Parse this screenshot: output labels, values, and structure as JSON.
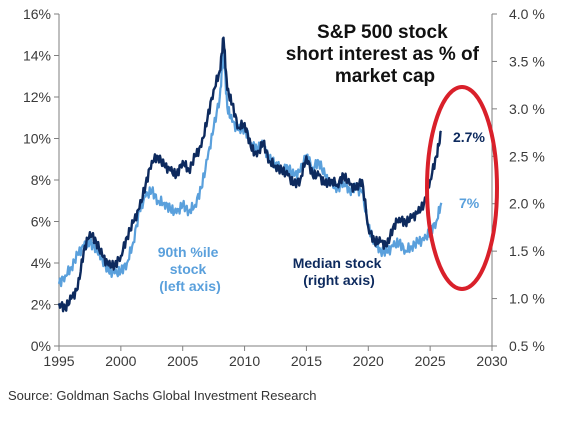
{
  "chart_data": {
    "type": "line",
    "title_lines": [
      "S&P 500 stock",
      "short interest as % of",
      "market cap"
    ],
    "x_ticks": [
      "1995",
      "2000",
      "2005",
      "2010",
      "2015",
      "2020",
      "2025",
      "2030"
    ],
    "left_ticks": [
      "0%",
      "2%",
      "4%",
      "6%",
      "8%",
      "10%",
      "12%",
      "14%",
      "16%"
    ],
    "right_ticks": [
      "0.5 %",
      "1.0 %",
      "1.5 %",
      "2.0 %",
      "2.5 %",
      "3.0 %",
      "3.5 %",
      "4.0 %"
    ],
    "xlim": [
      1995,
      2030
    ],
    "ylim_left": [
      0,
      16
    ],
    "ylim_right": [
      0.5,
      4.0
    ],
    "grid": false,
    "series": [
      {
        "name": "90th %ile stock (left axis)",
        "label_lines": [
          "90th %ile",
          "stock",
          "(left axis)"
        ],
        "axis": "left",
        "color": "#5aa0dc",
        "end_label": "7%",
        "x": [
          1995,
          1995.5,
          1996,
          1996.5,
          1997,
          1997.5,
          1998,
          1998.5,
          1999,
          1999.5,
          2000,
          2000.5,
          2001,
          2001.5,
          2002,
          2002.5,
          2003,
          2003.5,
          2004,
          2004.5,
          2005,
          2005.5,
          2006,
          2006.5,
          2007,
          2007.5,
          2008,
          2008.3,
          2008.6,
          2009,
          2009.5,
          2010,
          2010.5,
          2011,
          2011.5,
          2012,
          2012.5,
          2013,
          2013.5,
          2014,
          2014.5,
          2015,
          2015.5,
          2016,
          2016.5,
          2017,
          2017.5,
          2018,
          2018.5,
          2019,
          2019.5,
          2020,
          2020.5,
          2021,
          2021.5,
          2022,
          2022.5,
          2023,
          2023.5,
          2024,
          2024.5,
          2025,
          2025.5,
          2025.9
        ],
        "values": [
          3.0,
          3.4,
          3.8,
          4.4,
          4.8,
          5.0,
          4.7,
          4.2,
          3.6,
          3.5,
          3.6,
          4.0,
          5.0,
          6.5,
          7.2,
          7.5,
          7.0,
          6.9,
          6.6,
          6.4,
          6.8,
          6.5,
          6.8,
          7.6,
          9.0,
          10.5,
          12.0,
          14.2,
          11.5,
          10.8,
          10.4,
          10.5,
          9.8,
          9.5,
          9.7,
          9.0,
          8.8,
          8.5,
          8.6,
          8.2,
          8.4,
          9.2,
          8.6,
          8.9,
          8.2,
          7.8,
          7.6,
          7.9,
          7.5,
          7.6,
          7.4,
          5.8,
          5.0,
          4.6,
          4.5,
          4.8,
          5.0,
          4.6,
          4.8,
          5.0,
          5.1,
          5.5,
          6.0,
          6.9
        ]
      },
      {
        "name": "Median stock (right axis)",
        "label_lines": [
          "Median stock",
          "(right axis)"
        ],
        "axis": "right",
        "color": "#0d2a5e",
        "end_label": "2.7%",
        "x": [
          1995,
          1995.5,
          1996,
          1996.5,
          1997,
          1997.5,
          1998,
          1998.5,
          1999,
          1999.5,
          2000,
          2000.5,
          2001,
          2001.5,
          2002,
          2002.5,
          2003,
          2003.5,
          2004,
          2004.5,
          2005,
          2005.5,
          2006,
          2006.5,
          2007,
          2007.5,
          2008,
          2008.3,
          2008.6,
          2009,
          2009.5,
          2010,
          2010.5,
          2011,
          2011.5,
          2012,
          2012.5,
          2013,
          2013.5,
          2014,
          2014.5,
          2015,
          2015.5,
          2016,
          2016.5,
          2017,
          2017.5,
          2018,
          2018.5,
          2019,
          2019.5,
          2020,
          2020.5,
          2021,
          2021.5,
          2022,
          2022.5,
          2023,
          2023.5,
          2024,
          2024.5,
          2025,
          2025.5,
          2025.9
        ],
        "values": [
          0.95,
          0.9,
          1.0,
          1.1,
          1.5,
          1.7,
          1.6,
          1.45,
          1.35,
          1.35,
          1.45,
          1.65,
          1.8,
          1.95,
          2.2,
          2.45,
          2.5,
          2.4,
          2.35,
          2.3,
          2.45,
          2.35,
          2.5,
          2.6,
          2.9,
          3.2,
          3.4,
          3.75,
          3.2,
          3.05,
          2.8,
          2.85,
          2.6,
          2.5,
          2.65,
          2.45,
          2.4,
          2.35,
          2.3,
          2.2,
          2.25,
          2.5,
          2.3,
          2.3,
          2.2,
          2.25,
          2.2,
          2.3,
          2.2,
          2.15,
          2.25,
          1.75,
          1.6,
          1.6,
          1.55,
          1.75,
          1.85,
          1.8,
          1.85,
          1.9,
          2.0,
          2.25,
          2.5,
          2.75
        ]
      }
    ]
  },
  "source": "Source: Goldman Sachs Global Investment Research"
}
